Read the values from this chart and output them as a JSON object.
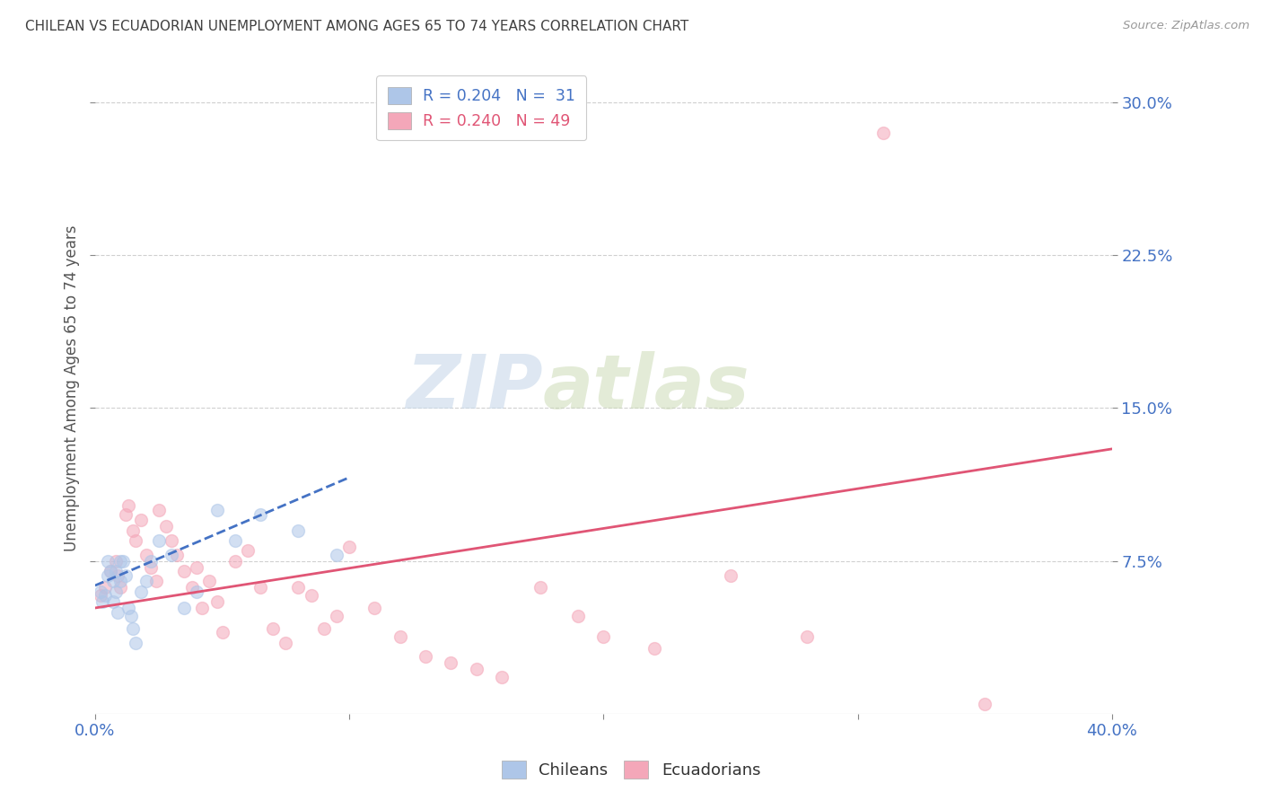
{
  "title": "CHILEAN VS ECUADORIAN UNEMPLOYMENT AMONG AGES 65 TO 74 YEARS CORRELATION CHART",
  "source": "Source: ZipAtlas.com",
  "ylabel": "Unemployment Among Ages 65 to 74 years",
  "xlim": [
    0.0,
    0.4
  ],
  "ylim": [
    0.0,
    0.32
  ],
  "yticks": [
    0.075,
    0.15,
    0.225,
    0.3
  ],
  "ytick_labels": [
    "7.5%",
    "15.0%",
    "22.5%",
    "30.0%"
  ],
  "xticks": [
    0.0,
    0.1,
    0.2,
    0.3,
    0.4
  ],
  "xtick_labels": [
    "0.0%",
    "",
    "",
    "",
    "40.0%"
  ],
  "watermark_zip": "ZIP",
  "watermark_atlas": "atlas",
  "chileans": {
    "color": "#aec6e8",
    "line_color": "#4472c4",
    "x": [
      0.002,
      0.003,
      0.004,
      0.005,
      0.005,
      0.006,
      0.007,
      0.007,
      0.008,
      0.008,
      0.009,
      0.01,
      0.01,
      0.011,
      0.012,
      0.013,
      0.014,
      0.015,
      0.016,
      0.018,
      0.02,
      0.022,
      0.025,
      0.03,
      0.035,
      0.04,
      0.048,
      0.055,
      0.065,
      0.08,
      0.095
    ],
    "y": [
      0.06,
      0.055,
      0.058,
      0.068,
      0.075,
      0.07,
      0.065,
      0.055,
      0.06,
      0.07,
      0.05,
      0.075,
      0.065,
      0.075,
      0.068,
      0.052,
      0.048,
      0.042,
      0.035,
      0.06,
      0.065,
      0.075,
      0.085,
      0.078,
      0.052,
      0.06,
      0.1,
      0.085,
      0.098,
      0.09,
      0.078
    ],
    "trend_x": [
      0.0,
      0.1
    ],
    "trend_y": [
      0.063,
      0.116
    ]
  },
  "ecuadorians": {
    "color": "#f4a7b9",
    "line_color": "#e05575",
    "x": [
      0.002,
      0.004,
      0.006,
      0.008,
      0.009,
      0.01,
      0.012,
      0.013,
      0.015,
      0.016,
      0.018,
      0.02,
      0.022,
      0.024,
      0.025,
      0.028,
      0.03,
      0.032,
      0.035,
      0.038,
      0.04,
      0.042,
      0.045,
      0.048,
      0.05,
      0.055,
      0.06,
      0.065,
      0.07,
      0.075,
      0.08,
      0.085,
      0.09,
      0.095,
      0.1,
      0.11,
      0.12,
      0.13,
      0.14,
      0.15,
      0.16,
      0.175,
      0.19,
      0.2,
      0.22,
      0.25,
      0.28,
      0.31,
      0.35
    ],
    "y": [
      0.058,
      0.062,
      0.07,
      0.075,
      0.068,
      0.062,
      0.098,
      0.102,
      0.09,
      0.085,
      0.095,
      0.078,
      0.072,
      0.065,
      0.1,
      0.092,
      0.085,
      0.078,
      0.07,
      0.062,
      0.072,
      0.052,
      0.065,
      0.055,
      0.04,
      0.075,
      0.08,
      0.062,
      0.042,
      0.035,
      0.062,
      0.058,
      0.042,
      0.048,
      0.082,
      0.052,
      0.038,
      0.028,
      0.025,
      0.022,
      0.018,
      0.062,
      0.048,
      0.038,
      0.032,
      0.068,
      0.038,
      0.285,
      0.005
    ],
    "trend_x": [
      0.0,
      0.4
    ],
    "trend_y": [
      0.052,
      0.13
    ]
  },
  "background_color": "#ffffff",
  "grid_color": "#d0d0d0",
  "title_color": "#404040",
  "axis_label_color": "#4472c4",
  "marker_size": 100,
  "marker_alpha": 0.55
}
